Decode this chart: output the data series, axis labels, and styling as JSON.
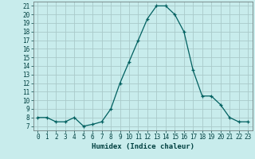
{
  "x": [
    0,
    1,
    2,
    3,
    4,
    5,
    6,
    7,
    8,
    9,
    10,
    11,
    12,
    13,
    14,
    15,
    16,
    17,
    18,
    19,
    20,
    21,
    22,
    23
  ],
  "y": [
    8,
    8,
    7.5,
    7.5,
    8,
    7,
    7.2,
    7.5,
    9,
    12,
    14.5,
    17,
    19.5,
    21,
    21,
    20,
    18,
    13.5,
    10.5,
    10.5,
    9.5,
    8,
    7.5,
    7.5
  ],
  "xlabel": "Humidex (Indice chaleur)",
  "xlim": [
    -0.5,
    23.5
  ],
  "ylim": [
    6.5,
    21.5
  ],
  "yticks": [
    7,
    8,
    9,
    10,
    11,
    12,
    13,
    14,
    15,
    16,
    17,
    18,
    19,
    20,
    21
  ],
  "xticks": [
    0,
    1,
    2,
    3,
    4,
    5,
    6,
    7,
    8,
    9,
    10,
    11,
    12,
    13,
    14,
    15,
    16,
    17,
    18,
    19,
    20,
    21,
    22,
    23
  ],
  "bg_color": "#c8ecec",
  "grid_color": "#aacaca",
  "line_color": "#006060",
  "marker_color": "#006060"
}
